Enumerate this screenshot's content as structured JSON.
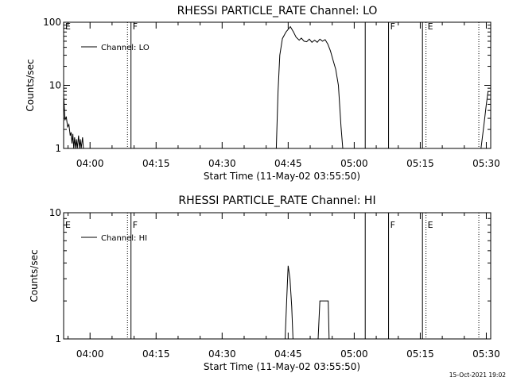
{
  "footer": {
    "timestamp": "15-Oct-2021 19:02"
  },
  "chart_data": [
    {
      "type": "line",
      "title": "RHESSI PARTICLE_RATE Channel: LO",
      "xlabel": "Start Time (11-May-02 03:55:50)",
      "ylabel": "Counts/sec",
      "yscale": "log",
      "ylim": [
        1,
        100
      ],
      "xlim_minutes": [
        -2,
        95
      ],
      "x_tick_labels": [
        "04:00",
        "04:15",
        "04:30",
        "04:45",
        "05:00",
        "05:15",
        "05:30"
      ],
      "x_tick_minutes": [
        4,
        19,
        34,
        49,
        64,
        79,
        94
      ],
      "y_tick_labels": [
        "1",
        "10",
        "100"
      ],
      "y_tick_values": [
        1,
        10,
        100
      ],
      "legend": {
        "label": "Channel: LO",
        "placement": "top-left"
      },
      "markers": [
        {
          "label": "E",
          "minute": -2,
          "style": "none"
        },
        {
          "label": "",
          "minute": 12.5,
          "style": "dotted"
        },
        {
          "label": "F",
          "minute": 13.3,
          "style": "solid"
        },
        {
          "label": "",
          "minute": 66.5,
          "style": "solid"
        },
        {
          "label": "F",
          "minute": 71.8,
          "style": "solid"
        },
        {
          "label": "",
          "minute": 79.5,
          "style": "solid"
        },
        {
          "label": "E",
          "minute": 80.3,
          "style": "dotted"
        },
        {
          "label": "",
          "minute": 92.3,
          "style": "dotted"
        }
      ],
      "series": [
        {
          "name": "Channel: LO",
          "segments": [
            [
              [
                -2,
                7
              ],
              [
                -1.7,
                2.8
              ],
              [
                -1.4,
                3.2
              ],
              [
                -1.1,
                2.2
              ],
              [
                -0.8,
                2.4
              ],
              [
                -0.5,
                1.6
              ],
              [
                -0.3,
                1.8
              ],
              [
                -0.1,
                1.2
              ],
              [
                0.1,
                1.7
              ],
              [
                0.3,
                1.0
              ],
              [
                0.5,
                1.5
              ],
              [
                0.7,
                1.0
              ],
              [
                0.9,
                1.4
              ],
              [
                1.1,
                1.0
              ],
              [
                1.4,
                1.6
              ],
              [
                1.6,
                1.0
              ],
              [
                1.8,
                1.4
              ],
              [
                2.0,
                1.0
              ],
              [
                2.3,
                1.5
              ],
              [
                2.5,
                1.0
              ]
            ],
            [
              [
                46.3,
                1.0
              ],
              [
                46.7,
                8
              ],
              [
                47.1,
                30
              ],
              [
                47.7,
                55
              ],
              [
                48.5,
                70
              ],
              [
                49.5,
                85
              ],
              [
                50.2,
                70
              ],
              [
                50.8,
                58
              ],
              [
                51.5,
                52
              ],
              [
                52.0,
                56
              ],
              [
                52.6,
                50
              ],
              [
                53.2,
                49
              ],
              [
                53.8,
                54
              ],
              [
                54.4,
                48
              ],
              [
                55.0,
                52
              ],
              [
                55.6,
                48
              ],
              [
                56.2,
                54
              ],
              [
                56.8,
                50
              ],
              [
                57.4,
                53
              ],
              [
                58.0,
                45
              ],
              [
                58.6,
                35
              ],
              [
                59.2,
                25
              ],
              [
                59.8,
                18
              ],
              [
                60.4,
                10
              ],
              [
                61.0,
                2.2
              ],
              [
                61.4,
                1.0
              ]
            ],
            [
              [
                92.8,
                1.0
              ],
              [
                93.5,
                2.5
              ],
              [
                94.0,
                5
              ],
              [
                94.4,
                8
              ]
            ]
          ]
        }
      ]
    },
    {
      "type": "line",
      "title": "RHESSI PARTICLE_RATE Channel: HI",
      "xlabel": "Start Time (11-May-02 03:55:50)",
      "ylabel": "Counts/sec",
      "yscale": "log",
      "ylim": [
        1,
        10
      ],
      "xlim_minutes": [
        -2,
        95
      ],
      "x_tick_labels": [
        "04:00",
        "04:15",
        "04:30",
        "04:45",
        "05:00",
        "05:15",
        "05:30"
      ],
      "x_tick_minutes": [
        4,
        19,
        34,
        49,
        64,
        79,
        94
      ],
      "y_tick_labels": [
        "1",
        "10"
      ],
      "y_tick_values": [
        1,
        10
      ],
      "legend": {
        "label": "Channel: HI",
        "placement": "top-left"
      },
      "markers": [
        {
          "label": "E",
          "minute": -2,
          "style": "none"
        },
        {
          "label": "",
          "minute": 12.5,
          "style": "dotted"
        },
        {
          "label": "F",
          "minute": 13.3,
          "style": "solid"
        },
        {
          "label": "",
          "minute": 66.5,
          "style": "solid"
        },
        {
          "label": "F",
          "minute": 71.8,
          "style": "solid"
        },
        {
          "label": "",
          "minute": 79.5,
          "style": "solid"
        },
        {
          "label": "E",
          "minute": 80.3,
          "style": "dotted"
        },
        {
          "label": "",
          "minute": 92.3,
          "style": "dotted"
        }
      ],
      "series": [
        {
          "name": "Channel: HI",
          "segments": [
            [
              [
                48.3,
                1.0
              ],
              [
                48.7,
                2.2
              ],
              [
                49.0,
                3.8
              ],
              [
                49.4,
                3.0
              ],
              [
                49.8,
                1.8
              ],
              [
                50.1,
                1.0
              ]
            ],
            [
              [
                55.8,
                1.0
              ],
              [
                56.2,
                2.0
              ],
              [
                58.1,
                2.0
              ],
              [
                58.3,
                1.0
              ]
            ]
          ]
        }
      ]
    }
  ]
}
